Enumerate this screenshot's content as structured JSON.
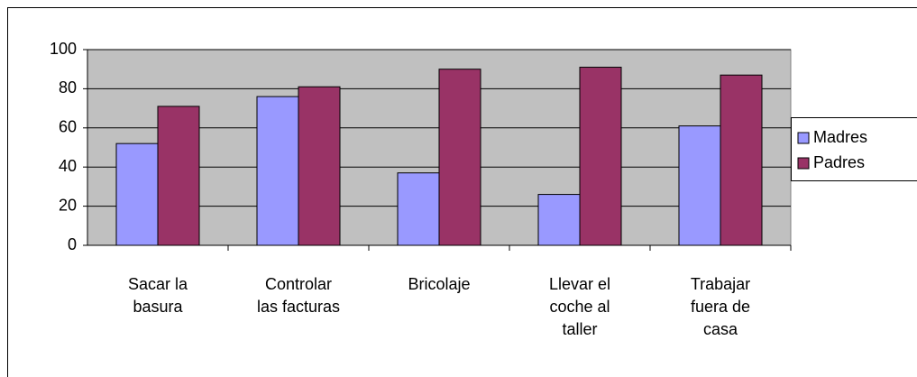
{
  "chart_data": {
    "type": "bar",
    "categories": [
      "Sacar la\nbasura",
      "Controlar\nlas facturas",
      "Bricolaje",
      "Llevar el\ncoche al\ntaller",
      "Trabajar\nfuera de\ncasa"
    ],
    "series": [
      {
        "name": "Madres",
        "color": "#9999ff",
        "values": [
          52,
          76,
          37,
          26,
          61
        ]
      },
      {
        "name": "Padres",
        "color": "#993366",
        "values": [
          71,
          81,
          90,
          91,
          87
        ]
      }
    ],
    "ylim": [
      0,
      100
    ],
    "yticks": [
      0,
      20,
      40,
      60,
      80,
      100
    ],
    "grid": true,
    "legend": "right"
  }
}
